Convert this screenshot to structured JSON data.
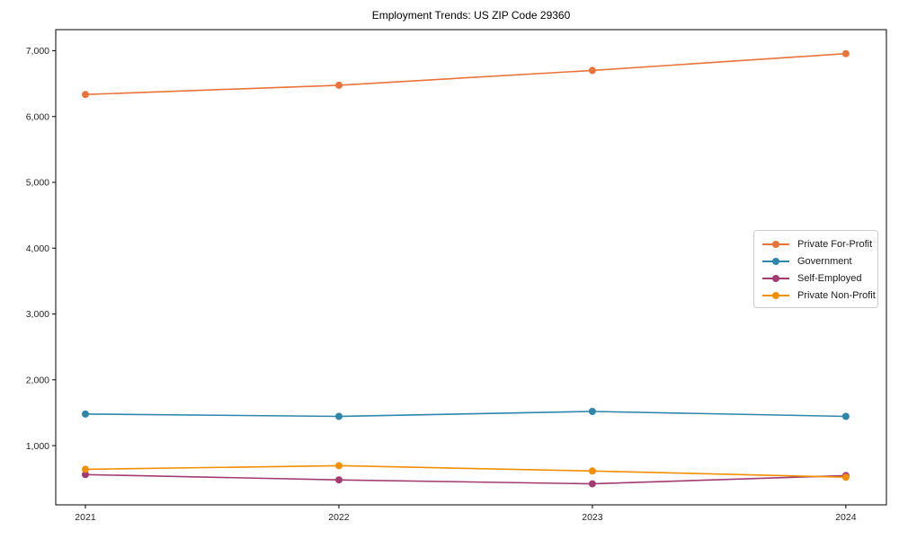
{
  "figure": {
    "background": "#ffffff",
    "spine_color": "#000000",
    "tick_label_color": "#262626"
  },
  "chart_data": {
    "type": "line",
    "title": "Employment Trends: US ZIP Code 29360",
    "xlabel": "",
    "ylabel": "",
    "x": [
      2021,
      2022,
      2023,
      2024
    ],
    "xticks": [
      {
        "value": 2021,
        "label": "2021"
      },
      {
        "value": 2022,
        "label": "2022"
      },
      {
        "value": 2023,
        "label": "2023"
      },
      {
        "value": 2024,
        "label": "2024"
      }
    ],
    "yticks": [
      {
        "value": 1000,
        "label": "1,000"
      },
      {
        "value": 2000,
        "label": "2,000"
      },
      {
        "value": 3000,
        "label": "3,000"
      },
      {
        "value": 4000,
        "label": "4,000"
      },
      {
        "value": 5000,
        "label": "5,000"
      },
      {
        "value": 6000,
        "label": "6,000"
      },
      {
        "value": 7000,
        "label": "7,000"
      }
    ],
    "xlim": [
      2020.883,
      2024.16
    ],
    "ylim": [
      100,
      7320
    ],
    "grid": false,
    "legend_position": "center right",
    "series": [
      {
        "name": "Private For-Profit",
        "color": "#E8743B",
        "values": [
          6335,
          6475,
          6700,
          6955
        ]
      },
      {
        "name": "Government",
        "color": "#2E86AB",
        "values": [
          1480,
          1445,
          1520,
          1445
        ]
      },
      {
        "name": "Self-Employed",
        "color": "#A23B72",
        "values": [
          560,
          480,
          420,
          545
        ]
      },
      {
        "name": "Private Non-Profit",
        "color": "#F18F01",
        "values": [
          640,
          695,
          615,
          520
        ]
      }
    ]
  }
}
